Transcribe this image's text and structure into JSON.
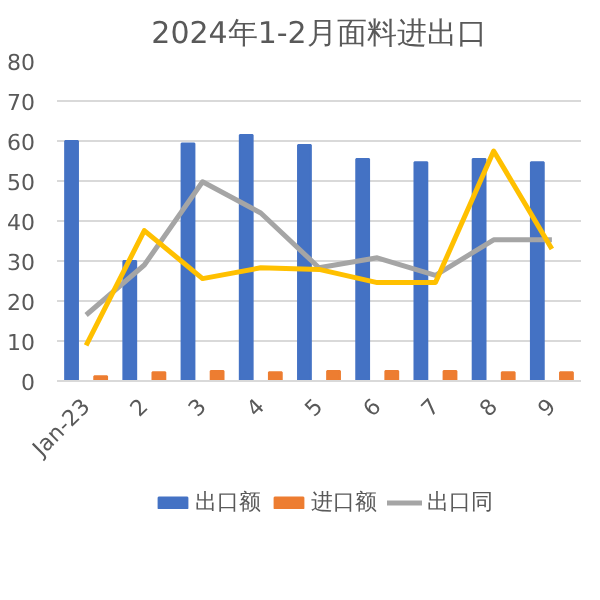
{
  "chart_data": {
    "type": "bar",
    "title": "2024年1-2月面料进出口",
    "categories": [
      "Jan-23",
      "2",
      "3",
      "4",
      "5",
      "6",
      "7",
      "8",
      "9"
    ],
    "series": [
      {
        "name": "出口额",
        "color": "#4472c4",
        "values": [
          60,
          30,
          59.4,
          61.5,
          59,
          55.5,
          54.7,
          55.5,
          54.7
        ]
      },
      {
        "name": "进口额",
        "color": "#ed7d31",
        "values": [
          1.2,
          2.2,
          2.5,
          2.2,
          2.5,
          2.5,
          2.5,
          2.2,
          2.2
        ]
      },
      {
        "name": "出口同",
        "type": "line",
        "color": "#a5a5a5",
        "values": [
          16.5,
          29,
          49.8,
          42,
          28.3,
          30.8,
          26.4,
          35.3,
          35.3
        ]
      },
      {
        "type": "line",
        "color": "#ffc000",
        "values": [
          8.9,
          37.6,
          25.6,
          28.3,
          27.9,
          24.6,
          24.6,
          57.5,
          33
        ]
      }
    ],
    "ylim": [
      0,
      80
    ],
    "yticks": [
      0,
      10,
      20,
      30,
      40,
      50,
      60,
      70,
      80
    ],
    "grid": "y",
    "legend": "bottom"
  }
}
